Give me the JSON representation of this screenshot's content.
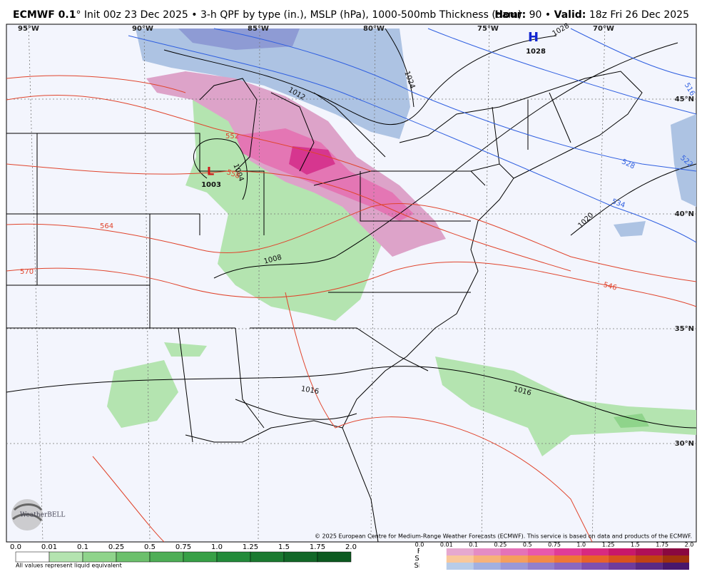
{
  "header": {
    "model": "ECMWF 0.1",
    "description": "° Init 00z 23 Dec 2025 • 3-h QPF by type (in.), MSLP (hPa), 1000-500mb Thickness (dam)",
    "hour_label": "Hour:",
    "hour": "90",
    "separator": "•",
    "valid_label": "Valid:",
    "valid": "18z Fri 26 Dec 2025"
  },
  "map": {
    "longitudes": [
      "95°W",
      "90°W",
      "85°W",
      "80°W",
      "75°W",
      "70°W"
    ],
    "latitudes": [
      "45°N",
      "40°N",
      "35°N",
      "30°N"
    ],
    "centers": [
      {
        "symbol": "H",
        "pressure": "1028"
      },
      {
        "symbol": "L",
        "pressure": "1003"
      }
    ],
    "isobar_labels": [
      "1028",
      "1024",
      "1012",
      "1004",
      "1008",
      "1016",
      "1016",
      "1020"
    ],
    "thickness_labels": [
      "516",
      "522",
      "528",
      "534",
      "546",
      "552",
      "558",
      "564",
      "570"
    ],
    "copyright": "© 2025 European Centre for Medium-Range Weather Forecasts (ECMWF). This service is based on data and products of the ECMWF.",
    "logo": "WeatherBELL"
  },
  "legend": {
    "rain_ticks": [
      "0.0",
      "0.01",
      "0.1",
      "0.25",
      "0.5",
      "0.75",
      "1.0",
      "1.25",
      "1.5",
      "1.75",
      "2.0"
    ],
    "note": "All values represent liquid equivalent",
    "type_ticks": [
      "0.0",
      "0.01",
      "0.1",
      "0.25",
      "0.5",
      "0.75",
      "1.0",
      "1.25",
      "1.5",
      "1.75",
      "2.0"
    ],
    "types": [
      "Frzr",
      "Sleet",
      "Snow"
    ]
  }
}
